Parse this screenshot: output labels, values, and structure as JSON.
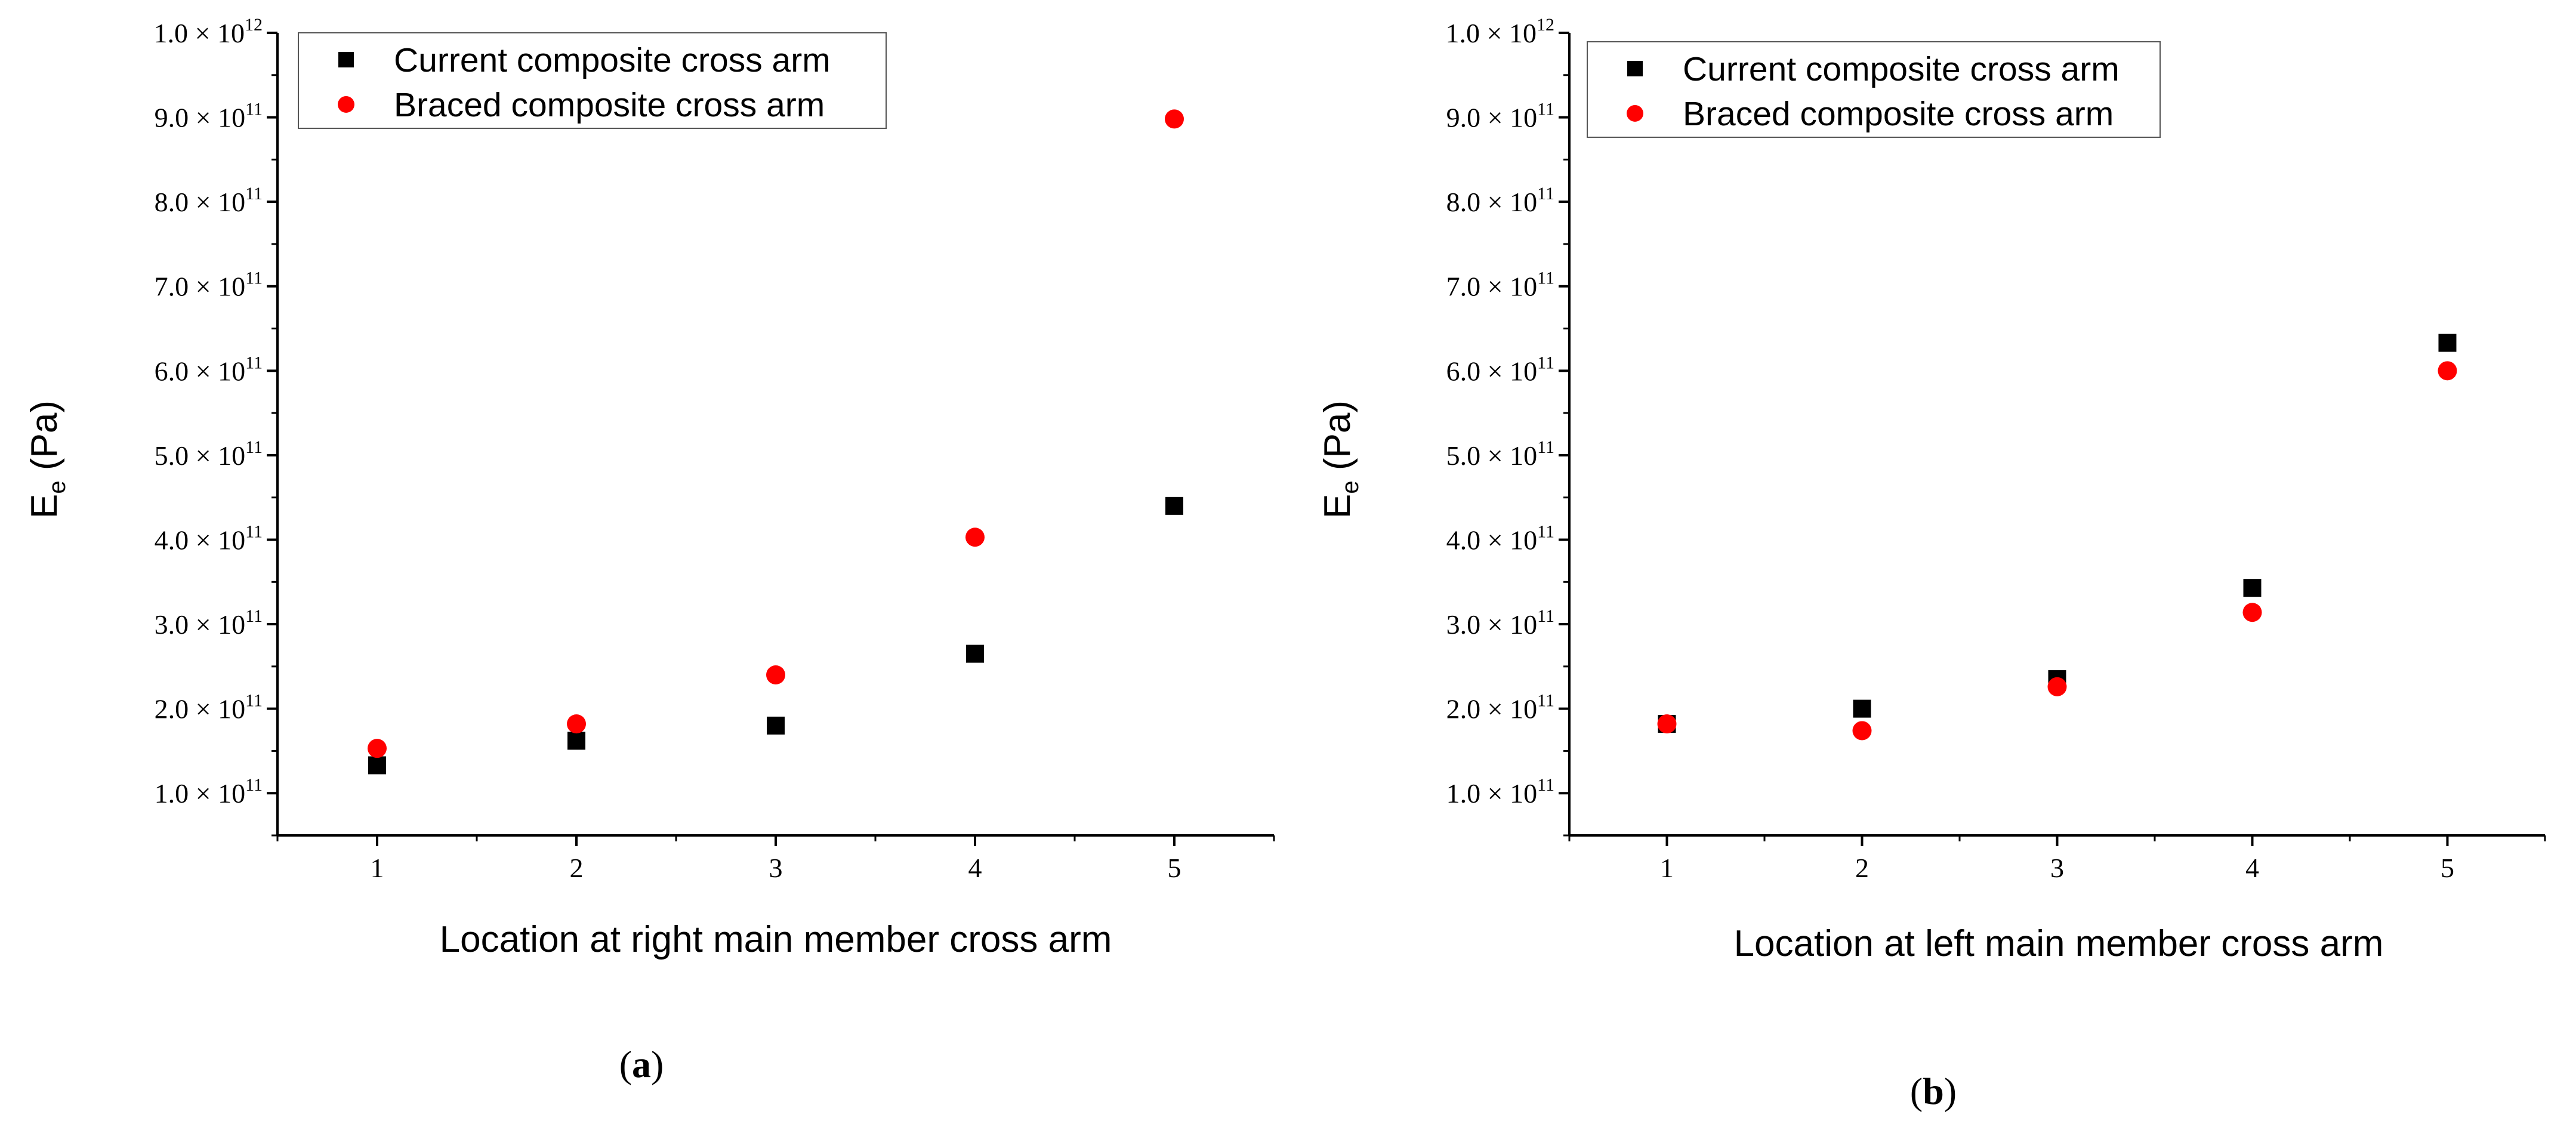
{
  "colors": {
    "current": "#000000",
    "braced": "#ff0000",
    "axis": "#000000"
  },
  "legend_entries": {
    "current": "Current composite cross arm",
    "braced": "Braced composite cross arm"
  },
  "chart_data": [
    {
      "type": "scatter",
      "panel_label": "a",
      "xlabel": "Location at right main member cross arm",
      "ylabel_base": "E",
      "ylabel_sub": "e",
      "ylabel_unit": " (Pa)",
      "xlim": [
        0.5,
        5.5
      ],
      "ylim": [
        50000000000.0,
        1000000000000.0
      ],
      "x_ticks": [
        "1",
        "2",
        "3",
        "4",
        "5"
      ],
      "y_ticks": [
        {
          "mant": "1.0",
          "exp": "11"
        },
        {
          "mant": "2.0",
          "exp": "11"
        },
        {
          "mant": "3.0",
          "exp": "11"
        },
        {
          "mant": "4.0",
          "exp": "11"
        },
        {
          "mant": "5.0",
          "exp": "11"
        },
        {
          "mant": "6.0",
          "exp": "11"
        },
        {
          "mant": "7.0",
          "exp": "11"
        },
        {
          "mant": "8.0",
          "exp": "11"
        },
        {
          "mant": "9.0",
          "exp": "11"
        },
        {
          "mant": "1.0",
          "exp": "12"
        }
      ],
      "y_tick_values": [
        100000000000.0,
        200000000000.0,
        300000000000.0,
        400000000000.0,
        500000000000.0,
        600000000000.0,
        700000000000.0,
        800000000000.0,
        900000000000.0,
        1000000000000.0
      ],
      "legend_position": "top-left",
      "series": [
        {
          "name": "Current composite cross arm",
          "marker": "square",
          "x": [
            1,
            2,
            3,
            4,
            5
          ],
          "y": [
            133000000000.0,
            162000000000.0,
            180000000000.0,
            265000000000.0,
            440000000000.0
          ]
        },
        {
          "name": "Braced composite cross arm",
          "marker": "circle",
          "x": [
            1,
            2,
            3,
            4,
            5
          ],
          "y": [
            153000000000.0,
            182000000000.0,
            240000000000.0,
            403000000000.0,
            898000000000.0
          ]
        }
      ]
    },
    {
      "type": "scatter",
      "panel_label": "b",
      "xlabel": "Location at left main member cross arm",
      "ylabel_base": "E",
      "ylabel_sub": "e",
      "ylabel_unit": " (Pa)",
      "xlim": [
        0.5,
        5.5
      ],
      "ylim": [
        50000000000.0,
        1000000000000.0
      ],
      "x_ticks": [
        "1",
        "2",
        "3",
        "4",
        "5"
      ],
      "y_ticks": [
        {
          "mant": "1.0",
          "exp": "11"
        },
        {
          "mant": "2.0",
          "exp": "11"
        },
        {
          "mant": "3.0",
          "exp": "11"
        },
        {
          "mant": "4.0",
          "exp": "11"
        },
        {
          "mant": "5.0",
          "exp": "11"
        },
        {
          "mant": "6.0",
          "exp": "11"
        },
        {
          "mant": "7.0",
          "exp": "11"
        },
        {
          "mant": "8.0",
          "exp": "11"
        },
        {
          "mant": "9.0",
          "exp": "11"
        },
        {
          "mant": "1.0",
          "exp": "12"
        }
      ],
      "y_tick_values": [
        100000000000.0,
        200000000000.0,
        300000000000.0,
        400000000000.0,
        500000000000.0,
        600000000000.0,
        700000000000.0,
        800000000000.0,
        900000000000.0,
        1000000000000.0
      ],
      "legend_position": "top-left",
      "series": [
        {
          "name": "Current composite cross arm",
          "marker": "square",
          "x": [
            1,
            2,
            3,
            4,
            5
          ],
          "y": [
            182000000000.0,
            200000000000.0,
            235000000000.0,
            343000000000.0,
            633000000000.0
          ]
        },
        {
          "name": "Braced composite cross arm",
          "marker": "circle",
          "x": [
            1,
            2,
            3,
            4,
            5
          ],
          "y": [
            182000000000.0,
            174000000000.0,
            226000000000.0,
            314000000000.0,
            600000000000.0
          ]
        }
      ]
    }
  ]
}
